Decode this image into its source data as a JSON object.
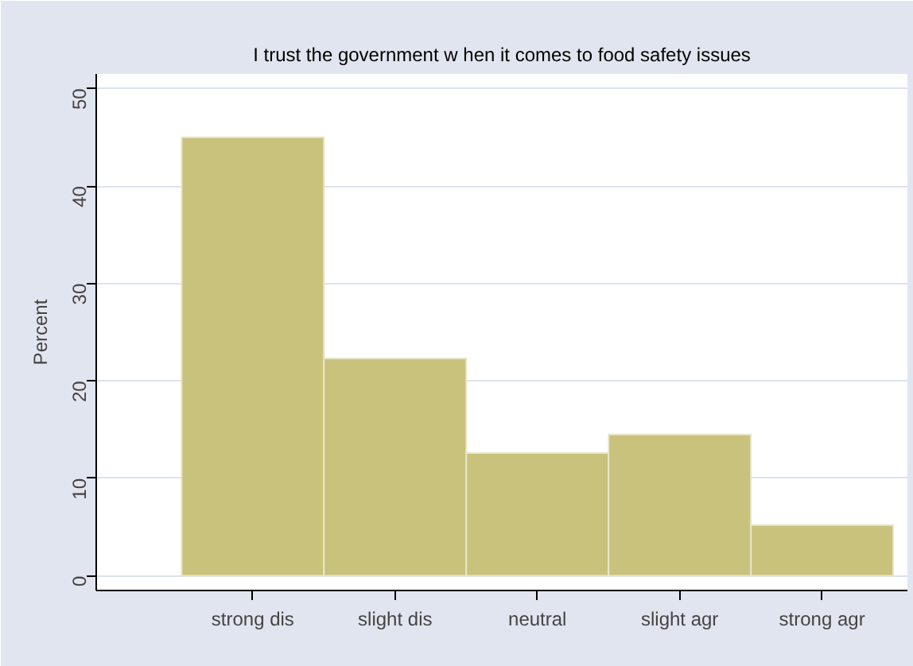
{
  "chart_data": {
    "type": "bar",
    "title": "I trust the government w hen it comes to food safety issues",
    "ylabel": "Percent",
    "categories": [
      "strong dis",
      "slight dis",
      "neutral",
      "slight agr",
      "strong agr"
    ],
    "values": [
      45,
      22.3,
      12.6,
      14.5,
      5.2
    ],
    "color": "#c9c27d",
    "ylim": [
      -1.5,
      51.5
    ],
    "yticks": [
      0,
      10,
      20,
      30,
      40,
      50
    ],
    "grid": "y"
  }
}
